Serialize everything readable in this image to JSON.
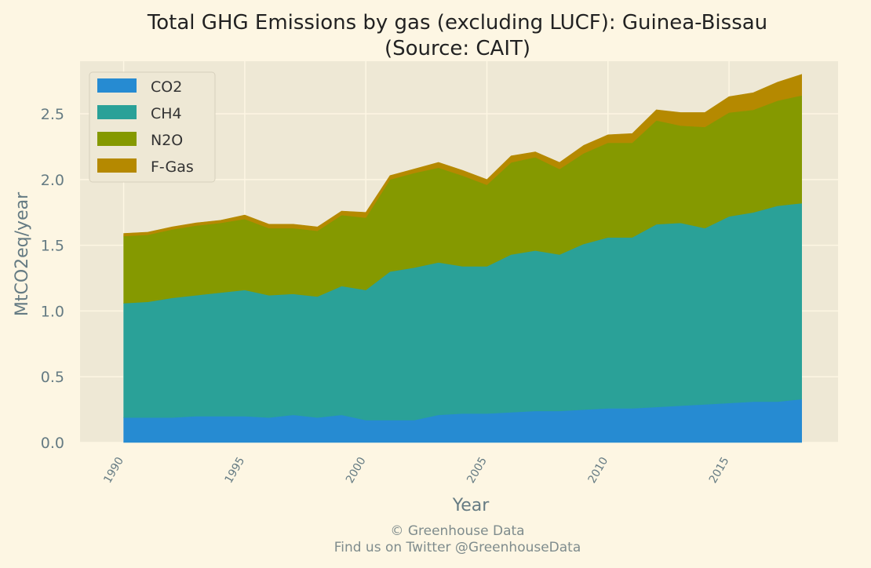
{
  "chart_data": {
    "type": "area",
    "stacked": true,
    "title": "Total GHG Emissions by gas (excluding LUCF): Guinea-Bissau",
    "subtitle": "(Source: CAIT)",
    "xlabel": "Year",
    "ylabel": "MtCO2eq/year",
    "xlim": [
      1988.2,
      2019.5
    ],
    "ylim": [
      0,
      2.9
    ],
    "grid": true,
    "legend_position": "top-left",
    "x": [
      1990,
      1991,
      1992,
      1993,
      1994,
      1995,
      1996,
      1997,
      1998,
      1999,
      2000,
      2001,
      2002,
      2003,
      2004,
      2005,
      2006,
      2007,
      2008,
      2009,
      2010,
      2011,
      2012,
      2013,
      2014,
      2015,
      2016,
      2017,
      2018
    ],
    "x_ticks": [
      1990,
      1995,
      2000,
      2005,
      2010,
      2015
    ],
    "x_tick_labels": [
      "1990",
      "1995",
      "2000",
      "2005",
      "2010",
      "2015"
    ],
    "y_ticks": [
      0.0,
      0.5,
      1.0,
      1.5,
      2.0,
      2.5
    ],
    "y_tick_labels": [
      "0.0",
      "0.5",
      "1.0",
      "1.5",
      "2.0",
      "2.5"
    ],
    "series": [
      {
        "name": "CO2",
        "color": "#268bd2",
        "values": [
          0.19,
          0.19,
          0.19,
          0.2,
          0.2,
          0.2,
          0.19,
          0.21,
          0.19,
          0.21,
          0.17,
          0.17,
          0.17,
          0.21,
          0.22,
          0.22,
          0.23,
          0.24,
          0.24,
          0.25,
          0.26,
          0.26,
          0.27,
          0.28,
          0.29,
          0.3,
          0.31,
          0.31,
          0.33
        ]
      },
      {
        "name": "CH4",
        "color": "#2aa198",
        "values": [
          0.87,
          0.88,
          0.91,
          0.92,
          0.94,
          0.96,
          0.93,
          0.92,
          0.92,
          0.98,
          0.99,
          1.13,
          1.16,
          1.16,
          1.12,
          1.12,
          1.2,
          1.22,
          1.19,
          1.26,
          1.3,
          1.3,
          1.39,
          1.39,
          1.34,
          1.42,
          1.44,
          1.49,
          1.49
        ]
      },
      {
        "name": "N2O",
        "color": "#859900",
        "values": [
          0.51,
          0.51,
          0.52,
          0.53,
          0.53,
          0.54,
          0.51,
          0.5,
          0.5,
          0.54,
          0.55,
          0.7,
          0.72,
          0.72,
          0.69,
          0.62,
          0.7,
          0.71,
          0.65,
          0.69,
          0.72,
          0.72,
          0.79,
          0.74,
          0.77,
          0.79,
          0.78,
          0.8,
          0.82
        ]
      },
      {
        "name": "F-Gas",
        "color": "#b58900",
        "values": [
          0.02,
          0.02,
          0.02,
          0.02,
          0.02,
          0.03,
          0.03,
          0.03,
          0.03,
          0.03,
          0.04,
          0.03,
          0.03,
          0.04,
          0.04,
          0.04,
          0.05,
          0.04,
          0.05,
          0.06,
          0.06,
          0.07,
          0.08,
          0.1,
          0.11,
          0.12,
          0.13,
          0.14,
          0.16
        ]
      }
    ]
  },
  "credits": {
    "line1": "© Greenhouse Data",
    "line2": "Find us on Twitter @GreenhouseData"
  }
}
